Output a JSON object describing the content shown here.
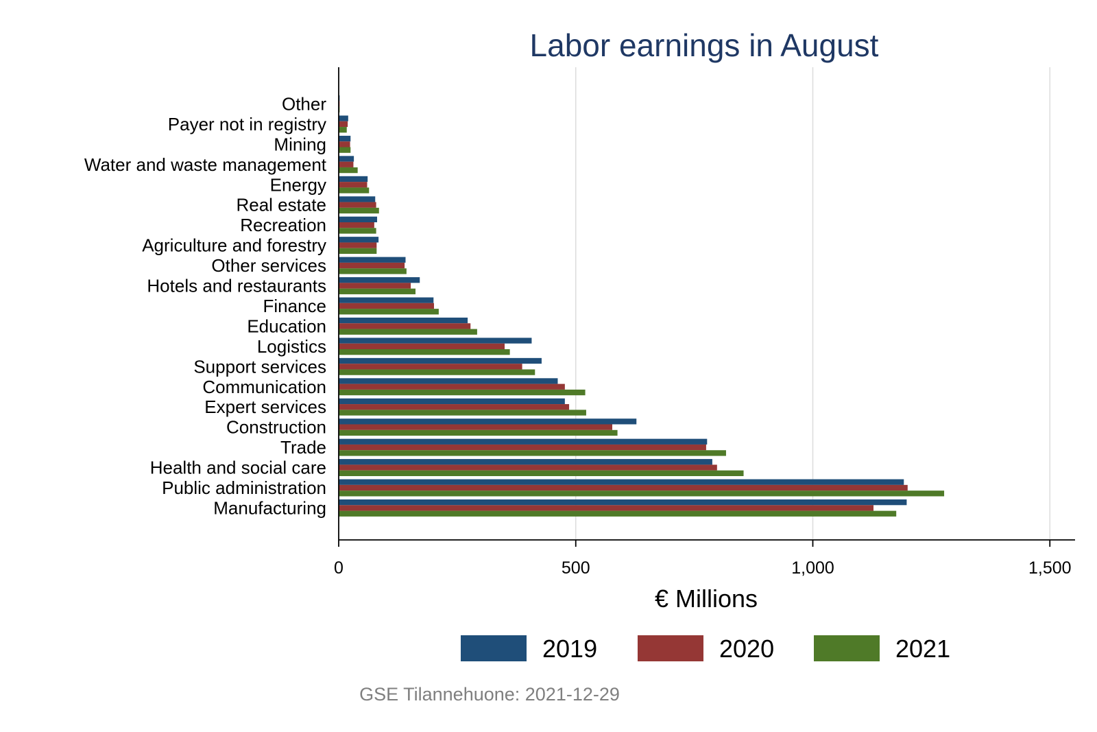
{
  "chart_data": {
    "type": "bar",
    "orientation": "horizontal",
    "title": "Labor earnings in August",
    "xlabel": "€ Millions",
    "ylabel": "",
    "xlim": [
      0,
      1550
    ],
    "x_ticks": [
      0,
      500,
      1000,
      1500
    ],
    "x_tick_labels": [
      "0",
      "500",
      "1,000",
      "1,500"
    ],
    "grid": "vertical",
    "legend_position": "bottom",
    "source": "GSE Tilannehuone: 2021-12-29",
    "categories": [
      "Other",
      "Payer not in registry",
      "Mining",
      "Water and waste management",
      "Energy",
      "Real estate",
      "Recreation",
      "Agriculture and forestry",
      "Other services",
      "Hotels and restaurants",
      "Finance",
      "Education",
      "Logistics",
      "Support services",
      "Communication",
      "Expert services",
      "Construction",
      "Trade",
      "Health and social care",
      "Public administration",
      "Manufacturing"
    ],
    "series": [
      {
        "name": "2019",
        "color": "#1f4e79",
        "values": [
          2,
          20,
          25,
          32,
          61,
          77,
          81,
          84,
          141,
          171,
          200,
          272,
          407,
          428,
          462,
          477,
          628,
          777,
          788,
          1192,
          1198
        ]
      },
      {
        "name": "2020",
        "color": "#953735",
        "values": [
          2,
          19,
          24,
          31,
          60,
          79,
          75,
          80,
          139,
          152,
          201,
          278,
          350,
          387,
          477,
          486,
          577,
          775,
          798,
          1200,
          1128
        ]
      },
      {
        "name": "2021",
        "color": "#4f7a28",
        "values": [
          2,
          17,
          25,
          40,
          64,
          85,
          79,
          80,
          143,
          162,
          211,
          292,
          361,
          414,
          520,
          522,
          588,
          817,
          854,
          1277,
          1176
        ]
      }
    ]
  }
}
